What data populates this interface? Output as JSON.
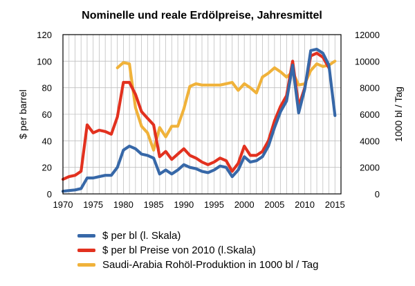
{
  "chart_data": {
    "type": "line",
    "title": "Nominelle und reale Erdölpreise, Jahresmittel",
    "ylabel_left": "$ per barrel",
    "ylabel_right": "1000 bl / Tag",
    "x_range": [
      1970,
      2016
    ],
    "x_ticks": [
      "1970",
      "1975",
      "1980",
      "1985",
      "1990",
      "1995",
      "2000",
      "2005",
      "2010",
      "2015"
    ],
    "y_left_range": [
      0,
      120
    ],
    "y_left_ticks": [
      "0",
      "20",
      "40",
      "60",
      "80",
      "100",
      "120"
    ],
    "y_right_range": [
      0,
      12000
    ],
    "y_right_ticks": [
      "0",
      "2000",
      "4000",
      "6000",
      "8000",
      "10000",
      "12000"
    ],
    "grid": true,
    "legend_position": "bottom",
    "series": [
      {
        "name": "$ per bl (l. Skala)",
        "color": "#3768a8",
        "axis": "left",
        "x": [
          1970,
          1971,
          1972,
          1973,
          1974,
          1975,
          1976,
          1977,
          1978,
          1979,
          1980,
          1981,
          1982,
          1983,
          1984,
          1985,
          1986,
          1987,
          1988,
          1989,
          1990,
          1991,
          1992,
          1993,
          1994,
          1995,
          1996,
          1997,
          1998,
          1999,
          2000,
          2001,
          2002,
          2003,
          2004,
          2005,
          2006,
          2007,
          2008,
          2009,
          2010,
          2011,
          2012,
          2013,
          2014,
          2015
        ],
        "y": [
          2,
          2.5,
          3,
          4,
          12,
          12,
          13,
          14,
          14,
          20,
          33,
          36,
          34,
          30,
          29,
          27,
          15,
          18,
          15,
          18,
          22,
          20,
          19,
          17,
          16,
          18,
          21,
          20,
          13,
          18,
          28,
          24,
          25,
          28,
          36,
          50,
          62,
          70,
          97,
          61,
          79,
          108,
          109,
          106,
          97,
          59
        ]
      },
      {
        "name": "$ per bl Preise von 2010 (l.Skala)",
        "color": "#e2311f",
        "axis": "left",
        "x": [
          1970,
          1971,
          1972,
          1973,
          1974,
          1975,
          1976,
          1977,
          1978,
          1979,
          1980,
          1981,
          1982,
          1983,
          1984,
          1985,
          1986,
          1987,
          1988,
          1989,
          1990,
          1991,
          1992,
          1993,
          1994,
          1995,
          1996,
          1997,
          1998,
          1999,
          2000,
          2001,
          2002,
          2003,
          2004,
          2005,
          2006,
          2007,
          2008,
          2009,
          2010,
          2011,
          2012,
          2013,
          2014
        ],
        "y": [
          11,
          13,
          14,
          17,
          52,
          46,
          48,
          47,
          45,
          58,
          84,
          84,
          75,
          62,
          57,
          52,
          28,
          32,
          26,
          30,
          34,
          29,
          27,
          24,
          22,
          24,
          27,
          25,
          17,
          23,
          36,
          29,
          29,
          32,
          40,
          55,
          66,
          74,
          100,
          66,
          80,
          104,
          106,
          103,
          95
        ]
      },
      {
        "name": "Saudi-Arabia Rohöl-Produktion in 1000 bl / Tag",
        "color": "#f0b23a",
        "axis": "right",
        "x": [
          1979,
          1980,
          1981,
          1982,
          1983,
          1984,
          1985,
          1986,
          1987,
          1988,
          1989,
          1990,
          1991,
          1992,
          1993,
          1994,
          1995,
          1996,
          1997,
          1998,
          1999,
          2000,
          2001,
          2002,
          2003,
          2004,
          2005,
          2006,
          2007,
          2008,
          2009,
          2010,
          2011,
          2012,
          2013,
          2014,
          2015
        ],
        "y": [
          9500,
          9900,
          9800,
          6500,
          5100,
          4600,
          3300,
          5000,
          4300,
          5100,
          5100,
          6400,
          8100,
          8300,
          8200,
          8200,
          8200,
          8200,
          8300,
          8400,
          7800,
          8300,
          8000,
          7600,
          8800,
          9100,
          9500,
          9200,
          8800,
          9200,
          8200,
          8300,
          9300,
          9800,
          9600,
          9700,
          10000
        ]
      }
    ]
  }
}
